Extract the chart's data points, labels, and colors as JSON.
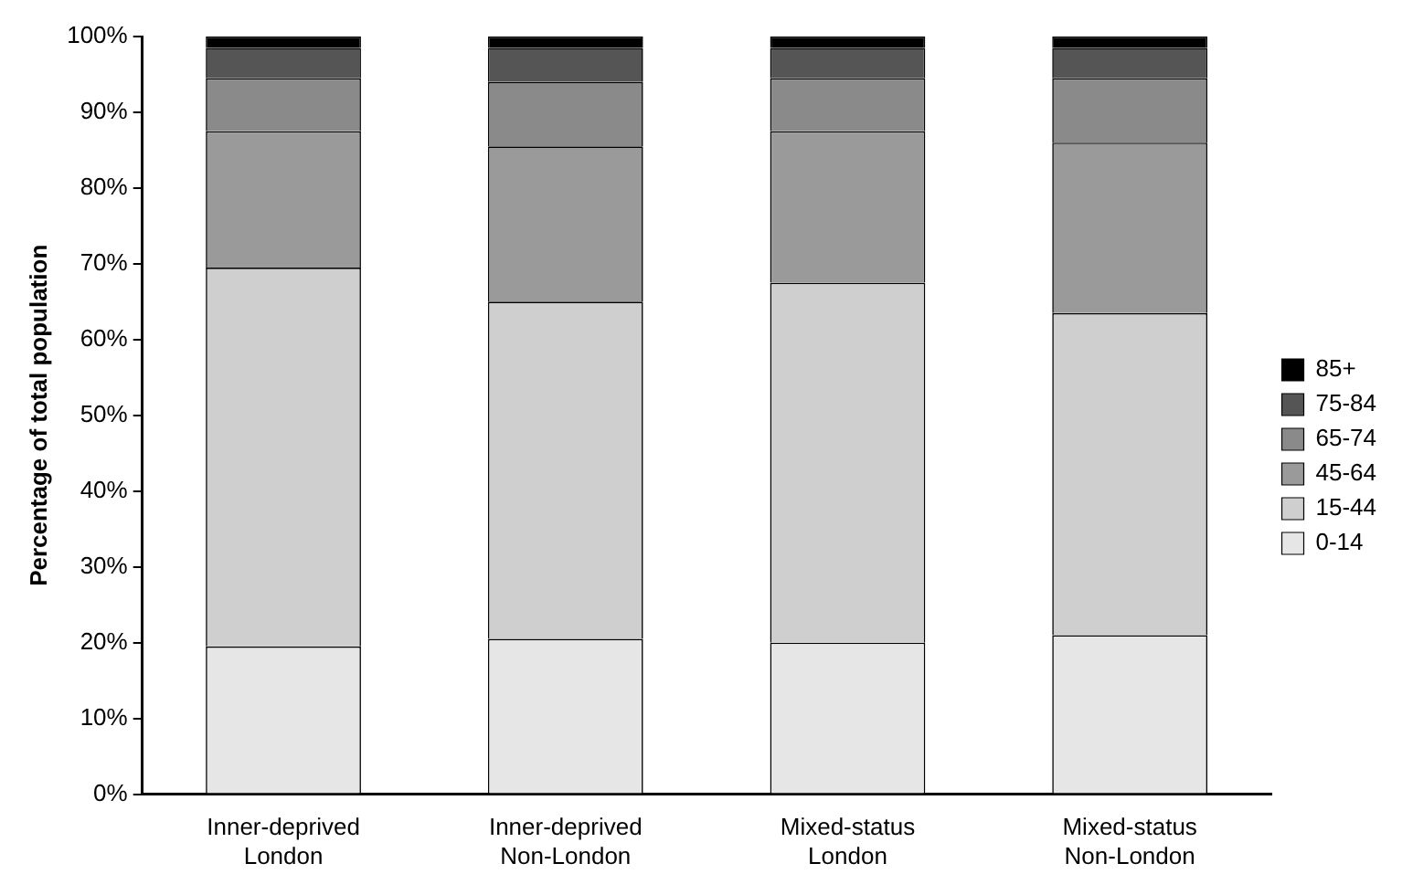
{
  "chart_data": {
    "type": "bar",
    "stacked": true,
    "ylabel": "Percentage of total population",
    "categories": [
      "Inner-deprived London",
      "Inner-deprived Non-London",
      "Mixed-status London",
      "Mixed-status Non-London"
    ],
    "series": [
      {
        "name": "0-14",
        "color": "#e6e6e6",
        "values": [
          19.5,
          20.5,
          20,
          21
        ]
      },
      {
        "name": "15-44",
        "color": "#cfcfcf",
        "values": [
          50,
          44.5,
          47.5,
          42.5
        ]
      },
      {
        "name": "45-64",
        "color": "#9a9a9a",
        "values": [
          18,
          20.5,
          20,
          22.5
        ]
      },
      {
        "name": "65-74",
        "color": "#8a8a8a",
        "values": [
          7,
          8.5,
          7,
          8.5
        ]
      },
      {
        "name": "75-84",
        "color": "#555555",
        "values": [
          4,
          4.5,
          4,
          4
        ]
      },
      {
        "name": "85+",
        "color": "#000000",
        "values": [
          1.5,
          1.5,
          1.5,
          1.5
        ]
      }
    ],
    "ylim": [
      0,
      100
    ],
    "yticks": [
      {
        "value": 0,
        "label": "0%"
      },
      {
        "value": 10,
        "label": "10%"
      },
      {
        "value": 20,
        "label": "20%"
      },
      {
        "value": 30,
        "label": "30%"
      },
      {
        "value": 40,
        "label": "40%"
      },
      {
        "value": 50,
        "label": "50%"
      },
      {
        "value": 60,
        "label": "60%"
      },
      {
        "value": 70,
        "label": "70%"
      },
      {
        "value": 80,
        "label": "80%"
      },
      {
        "value": 90,
        "label": "90%"
      },
      {
        "value": 100,
        "label": "100%"
      }
    ],
    "grid": false,
    "legend": "right"
  }
}
